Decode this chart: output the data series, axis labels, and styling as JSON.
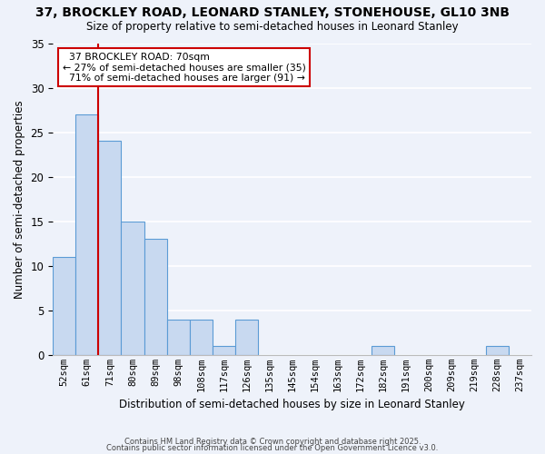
{
  "title": "37, BROCKLEY ROAD, LEONARD STANLEY, STONEHOUSE, GL10 3NB",
  "subtitle": "Size of property relative to semi-detached houses in Leonard Stanley",
  "xlabel": "Distribution of semi-detached houses by size in Leonard Stanley",
  "ylabel": "Number of semi-detached properties",
  "bar_labels": [
    "52sqm",
    "61sqm",
    "71sqm",
    "80sqm",
    "89sqm",
    "98sqm",
    "108sqm",
    "117sqm",
    "126sqm",
    "135sqm",
    "145sqm",
    "154sqm",
    "163sqm",
    "172sqm",
    "182sqm",
    "191sqm",
    "200sqm",
    "209sqm",
    "219sqm",
    "228sqm",
    "237sqm"
  ],
  "bar_values": [
    11,
    27,
    24,
    15,
    13,
    4,
    4,
    1,
    4,
    0,
    0,
    0,
    0,
    0,
    1,
    0,
    0,
    0,
    0,
    1,
    0
  ],
  "bar_color": "#c8d9f0",
  "bar_edge_color": "#5b9bd5",
  "background_color": "#eef2fa",
  "grid_color": "#ffffff",
  "ylim": [
    0,
    35
  ],
  "yticks": [
    0,
    5,
    10,
    15,
    20,
    25,
    30,
    35
  ],
  "property_line_x": 2.0,
  "property_line_label": "37 BROCKLEY ROAD: 70sqm",
  "pct_smaller": "27%",
  "count_smaller": 35,
  "pct_larger": "71%",
  "count_larger": 91,
  "annotation_box_color": "#ffffff",
  "annotation_box_edge": "#cc0000",
  "property_line_color": "#cc0000",
  "footer1": "Contains HM Land Registry data © Crown copyright and database right 2025.",
  "footer2": "Contains public sector information licensed under the Open Government Licence v3.0."
}
